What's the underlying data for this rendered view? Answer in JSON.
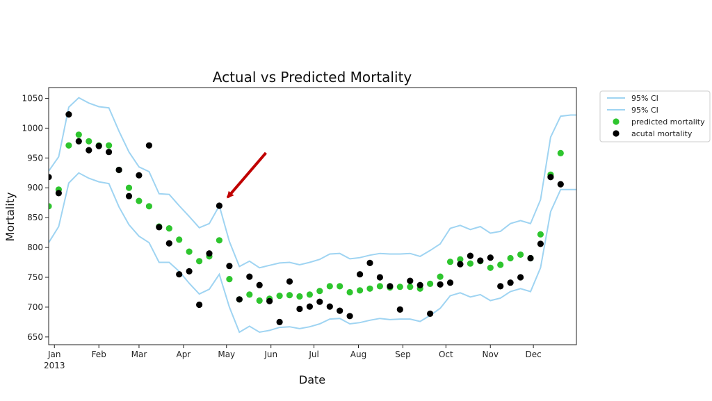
{
  "chart_data": {
    "type": "scatter",
    "title": "Actual vs Predicted Mortality",
    "xlabel": "Date",
    "ylabel": "Mortality",
    "x_start": "2013-01-01",
    "x_end": "2013-12-31",
    "xlim": [
      "2012-12-28",
      "2013-12-31"
    ],
    "ylim": [
      637,
      1068
    ],
    "yticks": [
      650,
      700,
      750,
      800,
      850,
      900,
      950,
      1000,
      1050
    ],
    "xticks": [
      {
        "date": "2013-01-01",
        "label": "Jan",
        "sublabel": "2013"
      },
      {
        "date": "2013-02-01",
        "label": "Feb",
        "sublabel": ""
      },
      {
        "date": "2013-03-01",
        "label": "Mar",
        "sublabel": ""
      },
      {
        "date": "2013-04-01",
        "label": "Apr",
        "sublabel": ""
      },
      {
        "date": "2013-05-01",
        "label": "May",
        "sublabel": ""
      },
      {
        "date": "2013-06-01",
        "label": "Jun",
        "sublabel": ""
      },
      {
        "date": "2013-07-01",
        "label": "Jul",
        "sublabel": ""
      },
      {
        "date": "2013-08-01",
        "label": "Aug",
        "sublabel": ""
      },
      {
        "date": "2013-09-01",
        "label": "Sep",
        "sublabel": ""
      },
      {
        "date": "2013-10-01",
        "label": "Oct",
        "sublabel": ""
      },
      {
        "date": "2013-11-01",
        "label": "Nov",
        "sublabel": ""
      },
      {
        "date": "2013-12-01",
        "label": "Dec",
        "sublabel": ""
      }
    ],
    "grid": false,
    "legend_position": "outside-top-right",
    "colors": {
      "ci": "#9fd4f2",
      "predicted": "#2ec52e",
      "actual": "#000000",
      "arrow": "#c00000"
    },
    "series": [
      {
        "name": "95% CI",
        "kind": "line",
        "x": [
          "2012-12-28",
          "2013-01-04",
          "2013-01-11",
          "2013-01-18",
          "2013-01-25",
          "2013-02-01",
          "2013-02-08",
          "2013-02-15",
          "2013-02-22",
          "2013-03-01",
          "2013-03-08",
          "2013-03-15",
          "2013-03-22",
          "2013-03-29",
          "2013-04-05",
          "2013-04-12",
          "2013-04-19",
          "2013-04-26",
          "2013-05-03",
          "2013-05-10",
          "2013-05-17",
          "2013-05-24",
          "2013-05-31",
          "2013-06-07",
          "2013-06-14",
          "2013-06-21",
          "2013-06-28",
          "2013-07-05",
          "2013-07-12",
          "2013-07-19",
          "2013-07-26",
          "2013-08-02",
          "2013-08-09",
          "2013-08-16",
          "2013-08-23",
          "2013-08-30",
          "2013-09-06",
          "2013-09-13",
          "2013-09-20",
          "2013-09-27",
          "2013-10-04",
          "2013-10-11",
          "2013-10-18",
          "2013-10-25",
          "2013-11-01",
          "2013-11-08",
          "2013-11-15",
          "2013-11-22",
          "2013-11-29",
          "2013-12-06",
          "2013-12-13",
          "2013-12-20",
          "2013-12-27",
          "2013-12-31"
        ],
        "y": [
          928,
          952,
          1035,
          1051,
          1042,
          1036,
          1034,
          995,
          960,
          935,
          927,
          890,
          889,
          870,
          852,
          833,
          840,
          870,
          810,
          768,
          777,
          766,
          770,
          774,
          775,
          771,
          775,
          780,
          789,
          790,
          781,
          783,
          787,
          790,
          789,
          789,
          790,
          785,
          795,
          806,
          832,
          837,
          830,
          835,
          824,
          827,
          840,
          845,
          840,
          880,
          985,
          1020,
          1022,
          1022
        ]
      },
      {
        "name": "95% CI",
        "kind": "line",
        "x": [
          "2012-12-28",
          "2013-01-04",
          "2013-01-11",
          "2013-01-18",
          "2013-01-25",
          "2013-02-01",
          "2013-02-08",
          "2013-02-15",
          "2013-02-22",
          "2013-03-01",
          "2013-03-08",
          "2013-03-15",
          "2013-03-22",
          "2013-03-29",
          "2013-04-05",
          "2013-04-12",
          "2013-04-19",
          "2013-04-26",
          "2013-05-03",
          "2013-05-10",
          "2013-05-17",
          "2013-05-24",
          "2013-05-31",
          "2013-06-07",
          "2013-06-14",
          "2013-06-21",
          "2013-06-28",
          "2013-07-05",
          "2013-07-12",
          "2013-07-19",
          "2013-07-26",
          "2013-08-02",
          "2013-08-09",
          "2013-08-16",
          "2013-08-23",
          "2013-08-30",
          "2013-09-06",
          "2013-09-13",
          "2013-09-20",
          "2013-09-27",
          "2013-10-04",
          "2013-10-11",
          "2013-10-18",
          "2013-10-25",
          "2013-11-01",
          "2013-11-08",
          "2013-11-15",
          "2013-11-22",
          "2013-11-29",
          "2013-12-06",
          "2013-12-13",
          "2013-12-20",
          "2013-12-27",
          "2013-12-31"
        ],
        "y": [
          808,
          835,
          908,
          925,
          916,
          910,
          907,
          868,
          838,
          819,
          808,
          775,
          775,
          760,
          740,
          722,
          730,
          755,
          700,
          658,
          668,
          658,
          661,
          666,
          667,
          664,
          667,
          672,
          680,
          681,
          672,
          674,
          678,
          681,
          679,
          680,
          680,
          676,
          686,
          698,
          719,
          724,
          717,
          721,
          711,
          715,
          726,
          731,
          726,
          766,
          860,
          897,
          897,
          897
        ]
      },
      {
        "name": "predicted mortality",
        "kind": "scatter",
        "x": [
          "2012-12-28",
          "2013-01-04",
          "2013-01-11",
          "2013-01-18",
          "2013-01-25",
          "2013-02-01",
          "2013-02-08",
          "2013-02-15",
          "2013-02-22",
          "2013-03-01",
          "2013-03-08",
          "2013-03-15",
          "2013-03-22",
          "2013-03-29",
          "2013-04-05",
          "2013-04-12",
          "2013-04-19",
          "2013-04-26",
          "2013-05-03",
          "2013-05-10",
          "2013-05-17",
          "2013-05-24",
          "2013-05-31",
          "2013-06-07",
          "2013-06-14",
          "2013-06-21",
          "2013-06-28",
          "2013-07-05",
          "2013-07-12",
          "2013-07-19",
          "2013-07-26",
          "2013-08-02",
          "2013-08-09",
          "2013-08-16",
          "2013-08-23",
          "2013-08-30",
          "2013-09-06",
          "2013-09-13",
          "2013-09-20",
          "2013-09-27",
          "2013-10-04",
          "2013-10-11",
          "2013-10-18",
          "2013-10-25",
          "2013-11-01",
          "2013-11-08",
          "2013-11-15",
          "2013-11-22",
          "2013-11-29",
          "2013-12-06",
          "2013-12-13",
          "2013-12-20"
        ],
        "y": [
          869,
          897,
          971,
          989,
          978,
          971,
          971,
          930,
          900,
          878,
          869,
          835,
          832,
          813,
          793,
          777,
          785,
          812,
          747,
          713,
          721,
          711,
          714,
          719,
          720,
          718,
          721,
          727,
          735,
          735,
          725,
          728,
          731,
          735,
          733,
          734,
          734,
          731,
          739,
          751,
          776,
          780,
          773,
          777,
          766,
          771,
          782,
          788,
          782,
          822,
          922,
          958
        ]
      },
      {
        "name": "acutal mortality",
        "kind": "scatter",
        "x": [
          "2012-12-28",
          "2013-01-04",
          "2013-01-11",
          "2013-01-18",
          "2013-01-25",
          "2013-02-01",
          "2013-02-08",
          "2013-02-15",
          "2013-02-22",
          "2013-03-01",
          "2013-03-08",
          "2013-03-15",
          "2013-03-22",
          "2013-03-29",
          "2013-04-05",
          "2013-04-12",
          "2013-04-19",
          "2013-04-26",
          "2013-05-03",
          "2013-05-10",
          "2013-05-17",
          "2013-05-24",
          "2013-05-31",
          "2013-06-07",
          "2013-06-14",
          "2013-06-21",
          "2013-06-28",
          "2013-07-05",
          "2013-07-12",
          "2013-07-19",
          "2013-07-26",
          "2013-08-02",
          "2013-08-09",
          "2013-08-16",
          "2013-08-23",
          "2013-08-30",
          "2013-09-06",
          "2013-09-13",
          "2013-09-20",
          "2013-09-27",
          "2013-10-04",
          "2013-10-11",
          "2013-10-18",
          "2013-10-25",
          "2013-11-01",
          "2013-11-08",
          "2013-11-15",
          "2013-11-22",
          "2013-11-29",
          "2013-12-06",
          "2013-12-13",
          "2013-12-20"
        ],
        "y": [
          918,
          891,
          1023,
          978,
          963,
          970,
          960,
          930,
          886,
          921,
          971,
          834,
          807,
          755,
          760,
          704,
          790,
          870,
          769,
          713,
          751,
          737,
          710,
          675,
          743,
          697,
          701,
          709,
          701,
          694,
          685,
          755,
          774,
          750,
          735,
          696,
          744,
          737,
          689,
          738,
          741,
          772,
          786,
          778,
          783,
          735,
          741,
          750,
          782,
          806,
          918,
          906
        ]
      }
    ],
    "annotations": [
      {
        "type": "arrow",
        "target_date": "2013-04-26",
        "target_value": 870,
        "color": "#c00000"
      }
    ]
  }
}
